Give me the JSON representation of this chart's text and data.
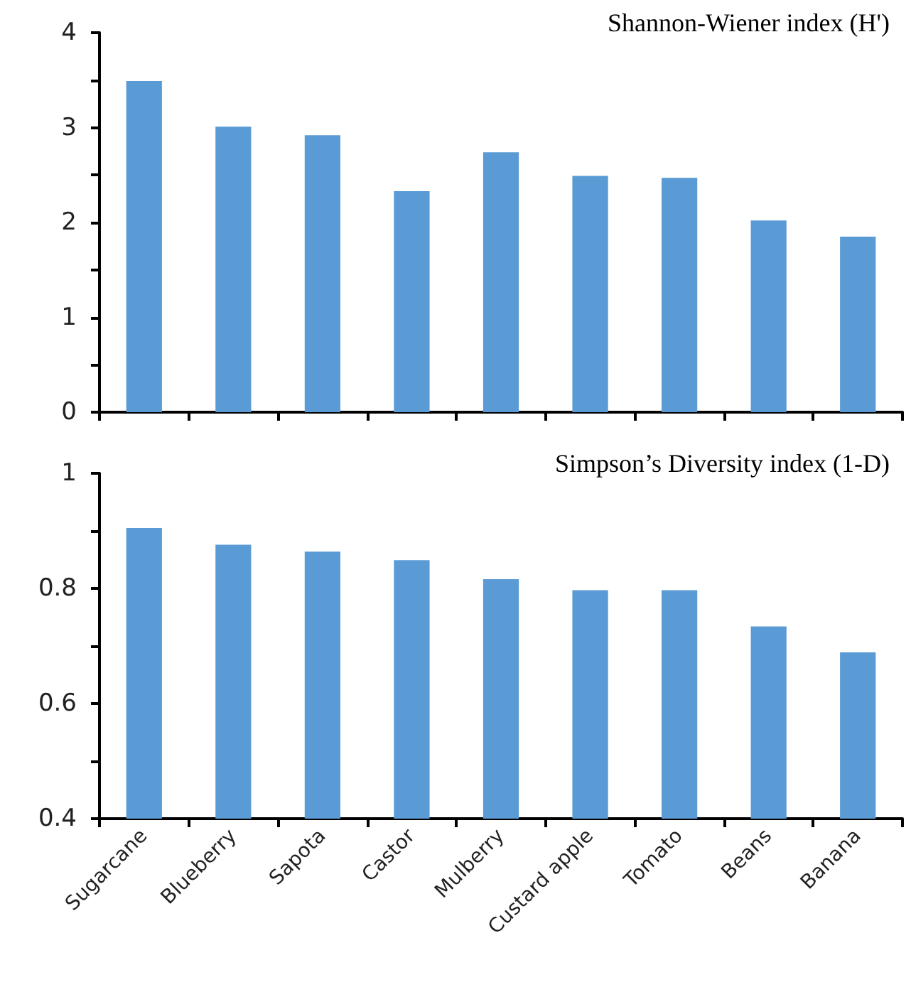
{
  "chart_data": [
    {
      "type": "bar",
      "title": "Shannon-Wiener index (H')",
      "categories": [
        null,
        null,
        null,
        null,
        null,
        null,
        null,
        null,
        null
      ],
      "values": [
        3.49,
        3.01,
        2.92,
        2.33,
        2.74,
        2.49,
        2.47,
        2.02,
        1.85
      ],
      "color": "#5b9bd5",
      "ylim": [
        0,
        4
      ],
      "yticks": [
        0,
        {
          "value": 0.5,
          "label": null
        },
        1,
        {
          "value": 1.5,
          "label": null
        },
        2,
        {
          "value": 2.5,
          "label": null
        },
        3,
        {
          "value": 3.5,
          "label": null
        },
        4
      ],
      "grid": false,
      "tick_labels": "y"
    },
    {
      "type": "bar",
      "title": "Simpson’s Diversity index (1-D)",
      "categories": [
        "Sugarcane",
        "Blueberry",
        "Sapota",
        "Castor",
        "Mulberry",
        "Custard apple",
        "Tomato",
        "Beans",
        "Banana"
      ],
      "values": [
        0.905,
        0.876,
        0.864,
        0.849,
        0.816,
        0.797,
        0.797,
        0.734,
        0.689
      ],
      "color": "#5b9bd5",
      "ylim": [
        0.4,
        1
      ],
      "yticks": [
        0.4,
        {
          "value": 0.5,
          "label": null
        },
        0.6,
        {
          "value": 0.7,
          "label": null
        },
        0.8,
        {
          "value": 0.9,
          "label": null
        },
        1
      ],
      "grid": false
    }
  ]
}
